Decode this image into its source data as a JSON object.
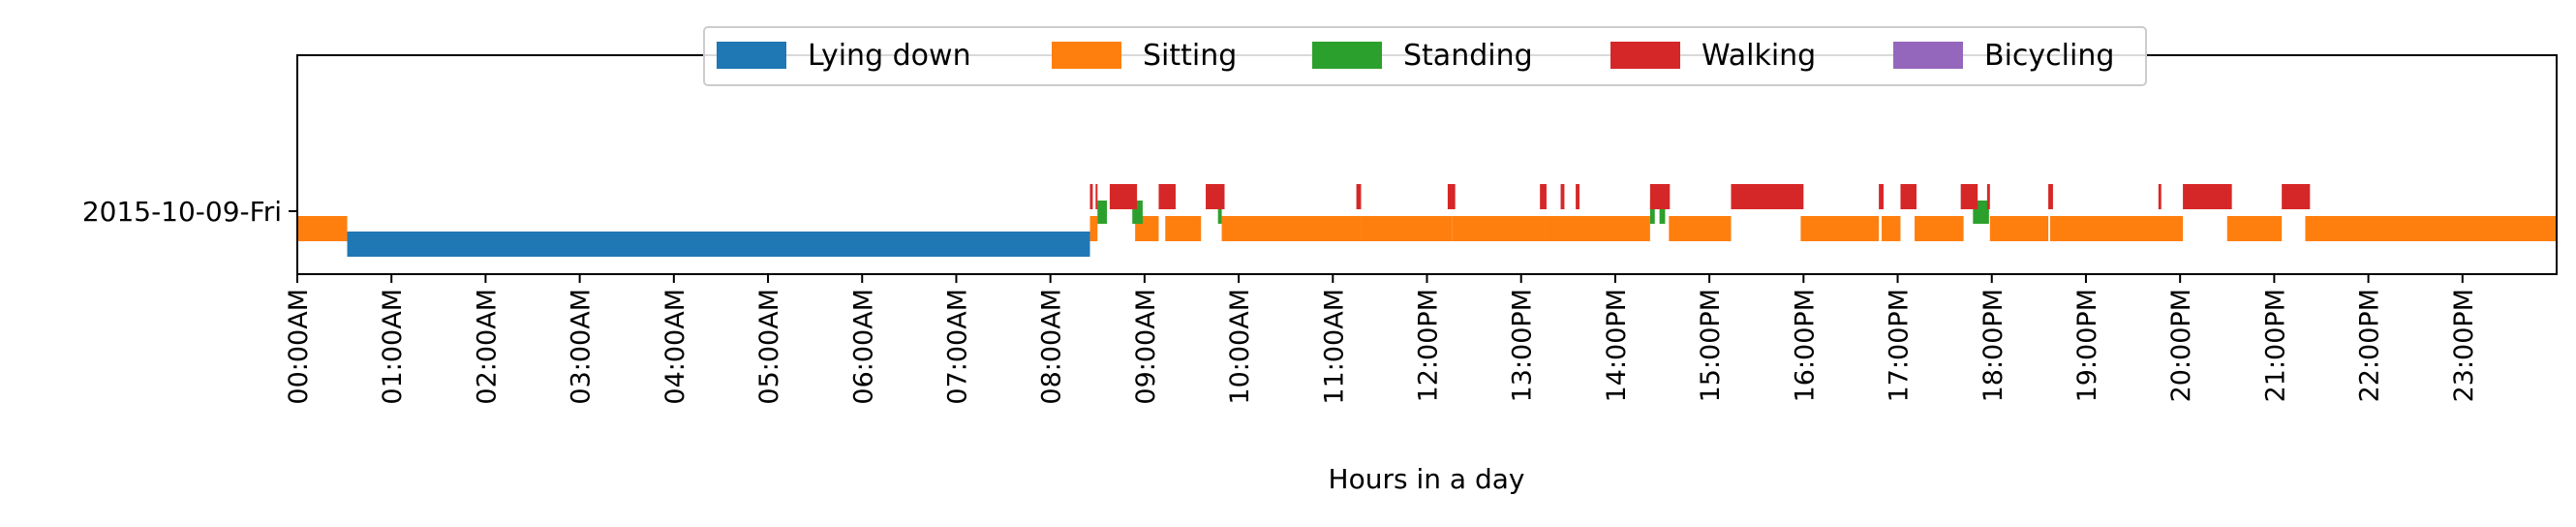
{
  "chart_data": {
    "type": "bar",
    "orientation": "horizontal-timeline",
    "xlabel": "Hours in a day",
    "ylabel": "",
    "xlim": [
      0,
      24
    ],
    "x_unit": "hours",
    "x_tick_labels": [
      "00:00AM",
      "01:00AM",
      "02:00AM",
      "03:00AM",
      "04:00AM",
      "05:00AM",
      "06:00AM",
      "07:00AM",
      "08:00AM",
      "09:00AM",
      "10:00AM",
      "11:00AM",
      "12:00PM",
      "13:00PM",
      "14:00PM",
      "15:00PM",
      "16:00PM",
      "17:00PM",
      "18:00PM",
      "19:00PM",
      "20:00PM",
      "21:00PM",
      "22:00PM",
      "23:00PM"
    ],
    "x_tick_values": [
      0,
      1,
      2,
      3,
      4,
      5,
      6,
      7,
      8,
      9,
      10,
      11,
      12,
      13,
      14,
      15,
      16,
      17,
      18,
      19,
      20,
      21,
      22,
      23
    ],
    "y_labels": [
      "2015-10-09-Fri"
    ],
    "grid": false,
    "legend_position": "top-center",
    "series": [
      {
        "name": "Lying down",
        "color": "#1f77b4",
        "intervals": [
          [
            0.53,
            8.42
          ]
        ]
      },
      {
        "name": "Sitting",
        "color": "#ff7f0e",
        "intervals": [
          [
            0.0,
            0.53
          ],
          [
            8.42,
            8.5
          ],
          [
            8.9,
            9.15
          ],
          [
            9.22,
            9.6
          ],
          [
            9.82,
            11.3
          ],
          [
            11.3,
            12.27
          ],
          [
            12.27,
            13.25
          ],
          [
            13.25,
            14.37
          ],
          [
            14.57,
            15.23
          ],
          [
            15.97,
            16.8
          ],
          [
            16.83,
            17.03
          ],
          [
            17.18,
            17.7
          ],
          [
            17.98,
            18.6
          ],
          [
            18.62,
            20.03
          ],
          [
            20.5,
            21.08
          ],
          [
            21.33,
            24.0
          ]
        ]
      },
      {
        "name": "Standing",
        "color": "#2ca02c",
        "intervals": [
          [
            8.5,
            8.6
          ],
          [
            8.87,
            8.98
          ],
          [
            9.78,
            9.82
          ],
          [
            14.37,
            14.42
          ],
          [
            14.47,
            14.53
          ],
          [
            17.8,
            17.97
          ]
        ]
      },
      {
        "name": "Walking",
        "color": "#d62728",
        "intervals": [
          [
            8.42,
            8.45
          ],
          [
            8.48,
            8.5
          ],
          [
            8.63,
            8.92
          ],
          [
            9.15,
            9.33
          ],
          [
            9.65,
            9.85
          ],
          [
            11.25,
            11.3
          ],
          [
            12.22,
            12.3
          ],
          [
            13.2,
            13.27
          ],
          [
            13.42,
            13.46
          ],
          [
            13.58,
            13.62
          ],
          [
            14.37,
            14.58
          ],
          [
            15.23,
            16.0
          ],
          [
            16.8,
            16.85
          ],
          [
            17.03,
            17.2
          ],
          [
            17.67,
            17.85
          ],
          [
            17.95,
            17.98
          ],
          [
            18.6,
            18.65
          ],
          [
            19.77,
            19.8
          ],
          [
            20.03,
            20.55
          ],
          [
            21.08,
            21.38
          ]
        ]
      },
      {
        "name": "Bicycling",
        "color": "#9467bd",
        "intervals": []
      }
    ]
  }
}
